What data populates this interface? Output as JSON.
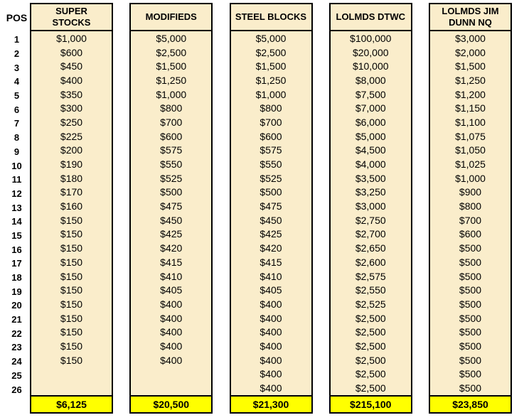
{
  "pos_header": "POS",
  "positions": [
    "1",
    "2",
    "3",
    "4",
    "5",
    "6",
    "7",
    "8",
    "9",
    "10",
    "11",
    "12",
    "13",
    "14",
    "15",
    "16",
    "17",
    "18",
    "19",
    "20",
    "21",
    "22",
    "23",
    "24",
    "25",
    "26"
  ],
  "columns": [
    {
      "name": "SUPER STOCKS",
      "values": [
        "$1,000",
        "$600",
        "$450",
        "$400",
        "$350",
        "$300",
        "$250",
        "$225",
        "$200",
        "$190",
        "$180",
        "$170",
        "$160",
        "$150",
        "$150",
        "$150",
        "$150",
        "$150",
        "$150",
        "$150",
        "$150",
        "$150",
        "$150",
        "$150",
        "",
        ""
      ],
      "total": "$6,125"
    },
    {
      "name": "MODIFIEDS",
      "values": [
        "$5,000",
        "$2,500",
        "$1,500",
        "$1,250",
        "$1,000",
        "$800",
        "$700",
        "$600",
        "$575",
        "$550",
        "$525",
        "$500",
        "$475",
        "$450",
        "$425",
        "$420",
        "$415",
        "$410",
        "$405",
        "$400",
        "$400",
        "$400",
        "$400",
        "$400",
        "",
        ""
      ],
      "total": "$20,500"
    },
    {
      "name": "STEEL BLOCKS",
      "values": [
        "$5,000",
        "$2,500",
        "$1,500",
        "$1,250",
        "$1,000",
        "$800",
        "$700",
        "$600",
        "$575",
        "$550",
        "$525",
        "$500",
        "$475",
        "$450",
        "$425",
        "$420",
        "$415",
        "$410",
        "$405",
        "$400",
        "$400",
        "$400",
        "$400",
        "$400",
        "$400",
        "$400"
      ],
      "total": "$21,300"
    },
    {
      "name": "LOLMDS DTWC",
      "values": [
        "$100,000",
        "$20,000",
        "$10,000",
        "$8,000",
        "$7,500",
        "$7,000",
        "$6,000",
        "$5,000",
        "$4,500",
        "$4,000",
        "$3,500",
        "$3,250",
        "$3,000",
        "$2,750",
        "$2,700",
        "$2,650",
        "$2,600",
        "$2,575",
        "$2,550",
        "$2,525",
        "$2,500",
        "$2,500",
        "$2,500",
        "$2,500",
        "$2,500",
        "$2,500"
      ],
      "total": "$215,100"
    },
    {
      "name": "LOLMDS JIM DUNN NQ",
      "values": [
        "$3,000",
        "$2,000",
        "$1,500",
        "$1,250",
        "$1,200",
        "$1,150",
        "$1,100",
        "$1,075",
        "$1,050",
        "$1,025",
        "$1,000",
        "$900",
        "$800",
        "$700",
        "$600",
        "$500",
        "$500",
        "$500",
        "$500",
        "$500",
        "$500",
        "$500",
        "$500",
        "$500",
        "$500",
        "$500"
      ],
      "total": "$23,850"
    }
  ],
  "colors": {
    "cell_bg": "#FAEDCB",
    "total_bg": "#FFFF00",
    "border": "#000000",
    "text": "#000000",
    "page_bg": "#FFFFFF"
  }
}
